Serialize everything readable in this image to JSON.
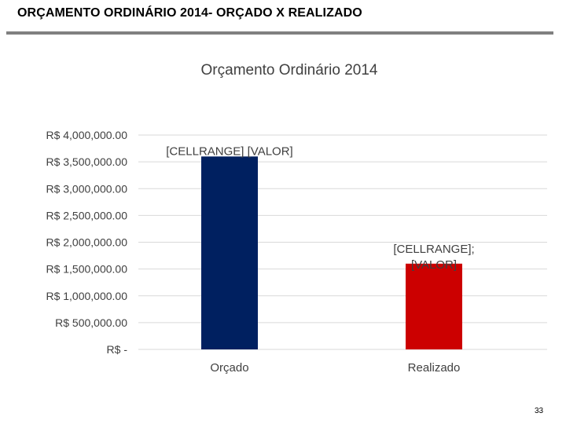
{
  "slide": {
    "title": "ORÇAMENTO ORDINÁRIO 2014- ORÇADO X REALIZADO",
    "page_number": "33"
  },
  "chart_data": {
    "type": "bar",
    "title": "Orçamento Ordinário 2014",
    "categories": [
      "Orçado",
      "Realizado"
    ],
    "values": [
      3600000,
      1600000
    ],
    "colors": [
      "#002060",
      "#cc0000"
    ],
    "ylim": [
      0,
      4000000
    ],
    "yticks": [
      0,
      500000,
      1000000,
      1500000,
      2000000,
      2500000,
      3000000,
      3500000,
      4000000
    ],
    "ytick_labels": [
      "R$ -",
      "R$ 500,000.00",
      "R$ 1,000,000.00",
      "R$ 1,500,000.00",
      "R$ 2,000,000.00",
      "R$ 2,500,000.00",
      "R$ 3,000,000.00",
      "R$ 3,500,000.00",
      "R$ 4,000,000.00"
    ],
    "data_labels": [
      [
        "[CELLRANGE] [VALOR]"
      ],
      [
        "[CELLRANGE];",
        "[VALOR]"
      ]
    ],
    "grid": true,
    "gridline_color": "#d9d9d9"
  }
}
